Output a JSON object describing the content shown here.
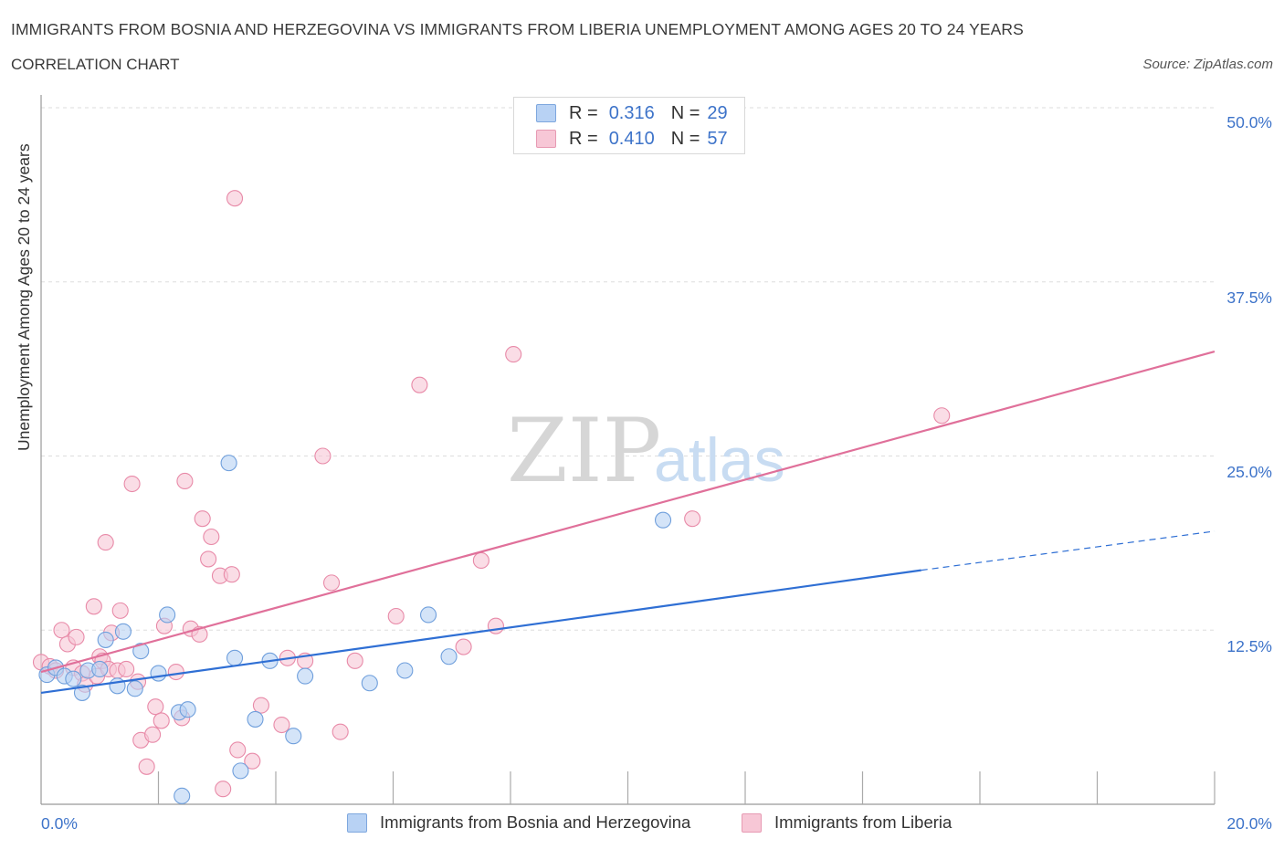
{
  "header": {
    "title": "IMMIGRANTS FROM BOSNIA AND HERZEGOVINA VS IMMIGRANTS FROM LIBERIA UNEMPLOYMENT AMONG AGES 20 TO 24 YEARS",
    "subtitle": "CORRELATION CHART",
    "source": "Source: ZipAtlas.com"
  },
  "colors": {
    "blue_fill": "#b8d2f4",
    "blue_stroke": "#6f9fdc",
    "blue_line": "#2f6fd4",
    "pink_fill": "#f7c7d6",
    "pink_stroke": "#e88aa8",
    "pink_line": "#e0709a",
    "grid": "#dddddd",
    "tick_text": "#3d73c9"
  },
  "legend": {
    "r_label": "R =",
    "n_label": "N =",
    "blue": {
      "r": "0.316",
      "n": "29"
    },
    "pink": {
      "r": "0.410",
      "n": "57"
    }
  },
  "watermark": {
    "zip": "ZIP",
    "atlas": "atlas"
  },
  "chart_data": {
    "type": "scatter",
    "title": "IMMIGRANTS FROM BOSNIA AND HERZEGOVINA VS IMMIGRANTS FROM LIBERIA UNEMPLOYMENT AMONG AGES 20 TO 24 YEARS",
    "xlabel": "",
    "ylabel": "Unemployment Among Ages 20 to 24 years",
    "xlim": [
      0,
      20
    ],
    "ylim": [
      0,
      50
    ],
    "x_tick_labels": [
      "0.0%",
      "20.0%"
    ],
    "y_tick_labels": [
      "12.5%",
      "25.0%",
      "37.5%",
      "50.0%"
    ],
    "y_ticks": [
      12.5,
      25,
      37.5,
      50
    ],
    "grid": true,
    "legend_position": "top-center",
    "series": [
      {
        "name": "Immigrants from Bosnia and Herzegovina",
        "color": "#6f9fdc",
        "r": 0.316,
        "n": 29,
        "trend": {
          "x": [
            0,
            15
          ],
          "y": [
            8.0,
            16.8
          ],
          "dashed_to": [
            20,
            19.6
          ]
        },
        "points": [
          [
            0.1,
            9.3
          ],
          [
            0.25,
            9.8
          ],
          [
            0.4,
            9.2
          ],
          [
            0.55,
            9.0
          ],
          [
            0.7,
            8.0
          ],
          [
            0.8,
            9.6
          ],
          [
            1.0,
            9.7
          ],
          [
            1.1,
            11.8
          ],
          [
            1.3,
            8.5
          ],
          [
            1.4,
            12.4
          ],
          [
            1.6,
            8.3
          ],
          [
            1.7,
            11.0
          ],
          [
            2.0,
            9.4
          ],
          [
            2.15,
            13.6
          ],
          [
            2.35,
            6.6
          ],
          [
            2.4,
            0.6
          ],
          [
            2.5,
            6.8
          ],
          [
            3.2,
            24.5
          ],
          [
            3.3,
            10.5
          ],
          [
            3.4,
            2.4
          ],
          [
            3.65,
            6.1
          ],
          [
            3.9,
            10.3
          ],
          [
            4.3,
            4.9
          ],
          [
            4.5,
            9.2
          ],
          [
            5.6,
            8.7
          ],
          [
            6.2,
            9.6
          ],
          [
            6.6,
            13.6
          ],
          [
            6.95,
            10.6
          ],
          [
            10.6,
            20.4
          ]
        ]
      },
      {
        "name": "Immigrants from Liberia",
        "color": "#e88aa8",
        "r": 0.41,
        "n": 57,
        "trend": {
          "x": [
            0,
            20
          ],
          "y": [
            9.5,
            32.5
          ]
        },
        "points": [
          [
            0.0,
            10.2
          ],
          [
            0.15,
            9.9
          ],
          [
            0.25,
            9.6
          ],
          [
            0.35,
            12.5
          ],
          [
            0.45,
            11.5
          ],
          [
            0.55,
            9.8
          ],
          [
            0.6,
            12.0
          ],
          [
            0.7,
            9.4
          ],
          [
            0.75,
            8.6
          ],
          [
            0.9,
            14.2
          ],
          [
            0.95,
            9.2
          ],
          [
            1.0,
            10.6
          ],
          [
            1.05,
            10.3
          ],
          [
            1.1,
            18.8
          ],
          [
            1.15,
            9.7
          ],
          [
            1.2,
            12.3
          ],
          [
            1.3,
            9.6
          ],
          [
            1.35,
            13.9
          ],
          [
            1.45,
            9.7
          ],
          [
            1.55,
            23.0
          ],
          [
            1.65,
            8.8
          ],
          [
            1.7,
            4.6
          ],
          [
            1.8,
            2.7
          ],
          [
            1.9,
            5.0
          ],
          [
            1.95,
            7.0
          ],
          [
            2.05,
            6.0
          ],
          [
            2.1,
            12.8
          ],
          [
            2.3,
            9.5
          ],
          [
            2.4,
            6.2
          ],
          [
            2.45,
            23.2
          ],
          [
            2.55,
            12.6
          ],
          [
            2.7,
            12.2
          ],
          [
            2.75,
            20.5
          ],
          [
            2.85,
            17.6
          ],
          [
            2.9,
            19.2
          ],
          [
            3.05,
            16.4
          ],
          [
            3.1,
            1.1
          ],
          [
            3.25,
            16.5
          ],
          [
            3.3,
            43.5
          ],
          [
            3.35,
            3.9
          ],
          [
            3.6,
            3.1
          ],
          [
            3.75,
            7.1
          ],
          [
            4.1,
            5.7
          ],
          [
            4.2,
            10.5
          ],
          [
            4.5,
            10.3
          ],
          [
            4.8,
            25.0
          ],
          [
            4.95,
            15.9
          ],
          [
            5.1,
            5.2
          ],
          [
            5.35,
            10.3
          ],
          [
            6.05,
            13.5
          ],
          [
            6.45,
            30.1
          ],
          [
            7.2,
            11.3
          ],
          [
            7.5,
            17.5
          ],
          [
            7.75,
            12.8
          ],
          [
            8.05,
            32.3
          ],
          [
            11.1,
            20.5
          ],
          [
            15.35,
            27.9
          ]
        ]
      }
    ]
  },
  "bottom_legend": {
    "blue_label": "Immigrants from Bosnia and Herzegovina",
    "pink_label": "Immigrants from Liberia"
  },
  "axes": {
    "ylabel": "Unemployment Among Ages 20 to 24 years",
    "x_left": "0.0%",
    "x_right": "20.0%",
    "y_12": "12.5%",
    "y_25": "25.0%",
    "y_37": "37.5%",
    "y_50": "50.0%"
  }
}
